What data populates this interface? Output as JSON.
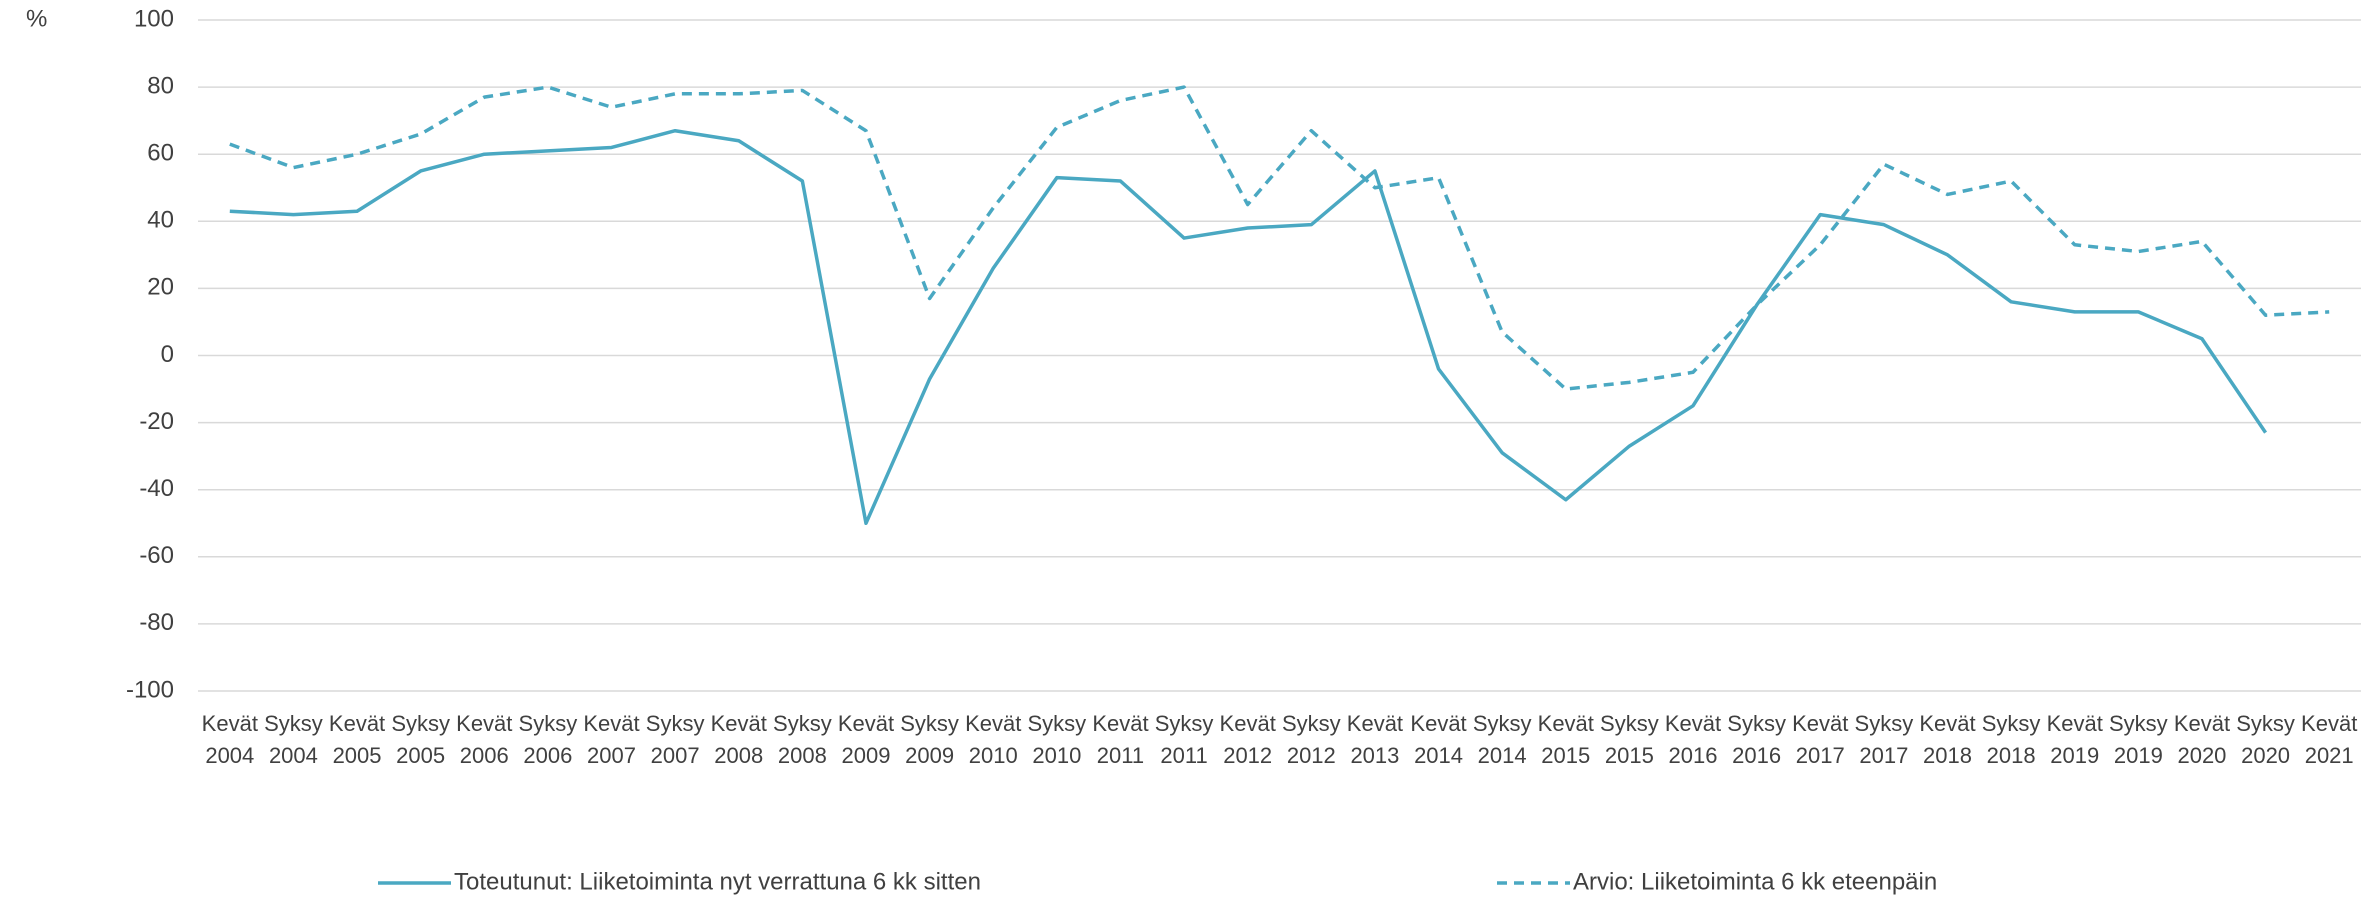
{
  "chart_data": {
    "type": "line",
    "y_label": "%",
    "categories": [
      "Kevät 2004",
      "Syksy 2004",
      "Kevät 2005",
      "Syksy 2005",
      "Kevät 2006",
      "Syksy 2006",
      "Kevät 2007",
      "Syksy 2007",
      "Kevät 2008",
      "Syksy 2008",
      "Kevät 2009",
      "Syksy 2009",
      "Kevät 2010",
      "Syksy 2010",
      "Kevät 2011",
      "Syksy 2011",
      "Kevät 2012",
      "Syksy 2012",
      "Kevät 2013",
      "Kevät 2014",
      "Syksy 2014",
      "Kevät 2015",
      "Syksy 2015",
      "Kevät 2016",
      "Syksy 2016",
      "Kevät 2017",
      "Syksy 2017",
      "Kevät 2018",
      "Syksy 2018",
      "Kevät 2019",
      "Syksy 2019",
      "Kevät 2020",
      "Syksy 2020",
      "Kevät 2021"
    ],
    "series": [
      {
        "name": "Toteutunut: Liiketoiminta nyt verrattuna 6 kk sitten",
        "color": "#4aa8c2",
        "dash": false,
        "values": [
          43,
          42,
          43,
          55,
          60,
          61,
          62,
          67,
          64,
          52,
          -50,
          -7,
          26,
          53,
          52,
          35,
          38,
          39,
          55,
          -4,
          -29,
          -43,
          -27,
          -15,
          15,
          42,
          39,
          30,
          16,
          13,
          13,
          5,
          -23,
          null
        ]
      },
      {
        "name": "Arvio: Liiketoiminta 6 kk eteenpäin",
        "color": "#4aa8c2",
        "dash": true,
        "values": [
          63,
          56,
          60,
          66,
          77,
          80,
          74,
          78,
          78,
          79,
          67,
          17,
          44,
          68,
          76,
          80,
          45,
          67,
          50,
          53,
          7,
          -10,
          -8,
          -5,
          15,
          33,
          57,
          48,
          52,
          33,
          31,
          34,
          12,
          13
        ]
      }
    ],
    "ylim": [
      -100,
      100
    ],
    "yticks": [
      -100,
      -80,
      -60,
      -40,
      -20,
      0,
      20,
      40,
      60,
      80,
      100
    ],
    "grid": true,
    "legend": "bottom"
  }
}
